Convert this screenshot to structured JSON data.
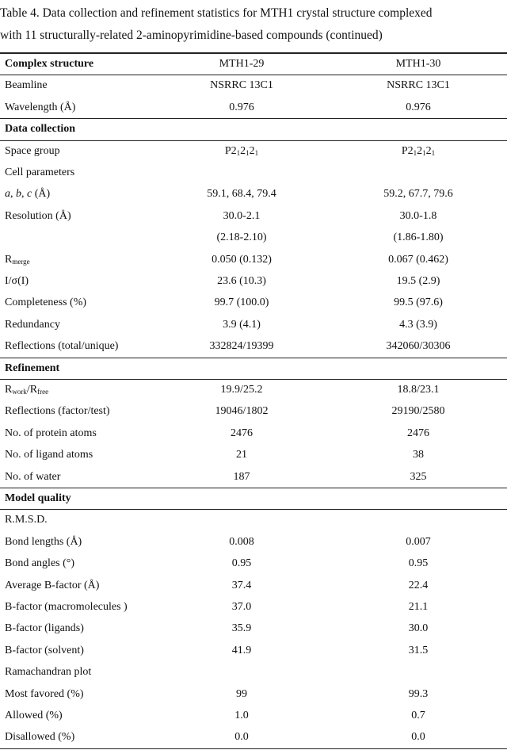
{
  "title_lines": [
    "Table 4. Data collection and refinement statistics for MTH1 crystal structure complexed",
    "with 11 structurally-related 2-aminopyrimidine-based compounds (continued)"
  ],
  "table": {
    "header": [
      "Complex structure",
      "MTH1-29",
      "MTH1-30"
    ],
    "rows": [
      {
        "cells": [
          "Beamline",
          "NSRRC 13C1",
          "NSRRC 13C1"
        ]
      },
      {
        "cells": [
          "Wavelength (Å)",
          "0.976",
          "0.976"
        ]
      },
      {
        "section": "Data collection"
      },
      {
        "cells": [
          "Space group",
          [
            {
              "t": "P2"
            },
            {
              "t": "1",
              "sub": true
            },
            {
              "t": "2"
            },
            {
              "t": "1",
              "sub": true
            },
            {
              "t": "2"
            },
            {
              "t": "1",
              "sub": true
            }
          ],
          [
            {
              "t": "P2"
            },
            {
              "t": "1",
              "sub": true
            },
            {
              "t": "2"
            },
            {
              "t": "1",
              "sub": true
            },
            {
              "t": "2"
            },
            {
              "t": "1",
              "sub": true
            }
          ]
        ]
      },
      {
        "cells": [
          "Cell parameters",
          null,
          null
        ]
      },
      {
        "cells": [
          [
            {
              "t": "a",
              "i": true
            },
            {
              "t": ", "
            },
            {
              "t": "b",
              "i": true
            },
            {
              "t": ", "
            },
            {
              "t": "c",
              "i": true
            },
            {
              "t": " (Å)"
            }
          ],
          "59.1, 68.4, 79.4",
          "59.2, 67.7, 79.6"
        ]
      },
      {
        "cells": [
          "Resolution (Å)",
          "30.0-2.1",
          "30.0-1.8"
        ]
      },
      {
        "cells": [
          null,
          "(2.18-2.10)",
          "(1.86-1.80)"
        ]
      },
      {
        "cells": [
          [
            {
              "t": "R"
            },
            {
              "t": "merge",
              "sub": true
            }
          ],
          "0.050 (0.132)",
          "0.067 (0.462)"
        ]
      },
      {
        "cells": [
          "I/σ(I)",
          "23.6 (10.3)",
          "19.5 (2.9)"
        ]
      },
      {
        "cells": [
          "Completeness (%)",
          "99.7 (100.0)",
          "99.5 (97.6)"
        ]
      },
      {
        "cells": [
          "Redundancy",
          "3.9 (4.1)",
          "4.3 (3.9)"
        ]
      },
      {
        "cells": [
          "Reflections (total/unique)",
          "332824/19399",
          "342060/30306"
        ]
      },
      {
        "section": "Refinement"
      },
      {
        "cells": [
          [
            {
              "t": "R"
            },
            {
              "t": "work",
              "sub": true
            },
            {
              "t": "/R"
            },
            {
              "t": "free",
              "sub": true
            }
          ],
          "19.9/25.2",
          "18.8/23.1"
        ]
      },
      {
        "cells": [
          "Reflections (factor/test)",
          "19046/1802",
          "29190/2580"
        ]
      },
      {
        "cells": [
          "No. of protein atoms",
          "2476",
          "2476"
        ]
      },
      {
        "cells": [
          "No. of ligand atoms",
          "21",
          "38"
        ]
      },
      {
        "cells": [
          "No. of water",
          "187",
          "325"
        ]
      },
      {
        "section": "Model quality"
      },
      {
        "cells": [
          "R.M.S.D.",
          null,
          null
        ]
      },
      {
        "cells": [
          "Bond lengths (Å)",
          "0.008",
          "0.007"
        ]
      },
      {
        "cells": [
          "Bond angles (°)",
          "0.95",
          "0.95"
        ]
      },
      {
        "cells": [
          "Average B-factor (Å)",
          "37.4",
          "22.4"
        ]
      },
      {
        "cells": [
          "B-factor (macromolecules )",
          "37.0",
          "21.1"
        ]
      },
      {
        "cells": [
          "B-factor (ligands)",
          "35.9",
          "30.0"
        ]
      },
      {
        "cells": [
          "B-factor (solvent)",
          "41.9",
          "31.5"
        ]
      },
      {
        "cells": [
          "Ramachandran plot",
          null,
          null
        ]
      },
      {
        "cells": [
          "Most favored (%)",
          "99",
          "99.3"
        ]
      },
      {
        "cells": [
          "Allowed (%)",
          "1.0",
          "0.7"
        ]
      },
      {
        "cells": [
          "Disallowed (%)",
          "0.0",
          "0.0"
        ]
      }
    ]
  }
}
